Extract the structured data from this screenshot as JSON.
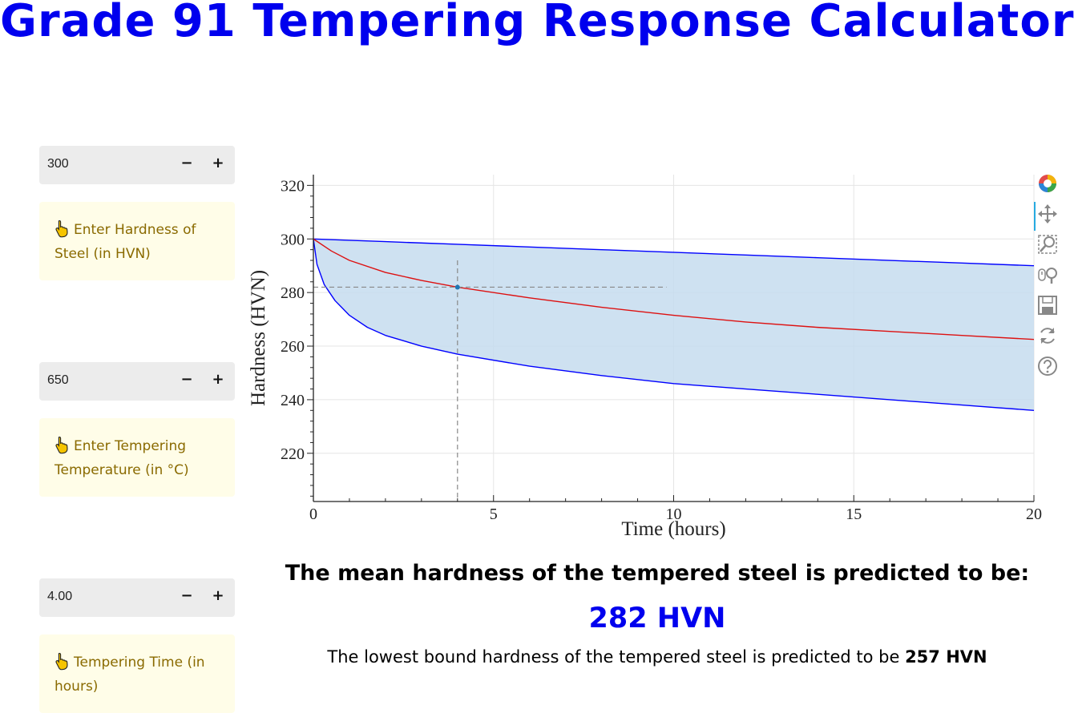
{
  "title": "Grade 91 Tempering Response Calculator",
  "inputs": [
    {
      "value": "300",
      "minus": "−",
      "plus": "+",
      "hint": "Enter Hardness of Steel (in HVN)"
    },
    {
      "value": "650",
      "minus": "−",
      "plus": "+",
      "hint": "Enter Tempering Temperature (in °C)"
    },
    {
      "value": "4.00",
      "minus": "−",
      "plus": "+",
      "hint": "Tempering Time (in hours)"
    }
  ],
  "chart_data": {
    "type": "line",
    "xlabel": "Time (hours)",
    "ylabel": "Hardness (HVN)",
    "xlim": [
      0,
      20
    ],
    "ylim": [
      202,
      324
    ],
    "xticks": [
      0,
      5,
      10,
      15,
      20
    ],
    "yticks": [
      220,
      240,
      260,
      280,
      300,
      320
    ],
    "grid": true,
    "series": [
      {
        "role": "upper bound",
        "color": "#0000ff",
        "x": [
          0,
          1,
          2,
          4,
          6,
          8,
          10,
          12,
          14,
          16,
          18,
          20
        ],
        "y": [
          300,
          299.5,
          299,
          298,
          297,
          296,
          295,
          294,
          293,
          292,
          291,
          290
        ]
      },
      {
        "role": "lower bound",
        "color": "#0000ff",
        "x": [
          0,
          0.1,
          0.3,
          0.6,
          1,
          1.5,
          2,
          3,
          4,
          6,
          8,
          10,
          12,
          14,
          16,
          18,
          20
        ],
        "y": [
          300,
          290.5,
          283,
          277,
          271.5,
          267,
          264,
          260,
          257,
          252.5,
          249,
          246,
          244,
          242,
          240,
          238,
          236
        ]
      },
      {
        "role": "mean",
        "color": "#dd1111",
        "x": [
          0,
          0.5,
          1,
          2,
          3,
          4,
          6,
          8,
          10,
          12,
          14,
          16,
          18,
          20
        ],
        "y": [
          300,
          295.5,
          292,
          287.5,
          284.5,
          282,
          278,
          274.5,
          271.5,
          269,
          267,
          265.5,
          264,
          262.5
        ]
      }
    ],
    "band_fill": "#c6dcee",
    "marker": {
      "x": 4.0,
      "y": 282
    },
    "crosshair": true
  },
  "toolbar": {
    "tools": [
      "bokeh-logo-icon",
      "pan-icon",
      "box-zoom-icon",
      "wheel-zoom-icon",
      "save-icon",
      "reset-icon",
      "help-icon"
    ]
  },
  "result": {
    "heading": "The mean hardness of the tempered steel is predicted to be:",
    "mean_value": "282 HVN",
    "lower_text": "The lowest bound hardness of the tempered steel is predicted to be ",
    "lower_value": "257 HVN"
  }
}
